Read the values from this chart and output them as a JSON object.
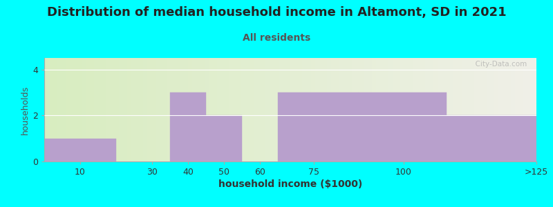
{
  "title": "Distribution of median household income in Altamont, SD in 2021",
  "subtitle": "All residents",
  "xlabel": "household income ($1000)",
  "ylabel": "households",
  "background_color": "#00FFFF",
  "plot_bg_left_color": "#d8edc0",
  "plot_bg_right_color": "#f0f0e8",
  "bar_color": "#b8a0cc",
  "bar_edgecolor": "#b8a0cc",
  "watermark": "  City-Data.com",
  "bar_lefts": [
    0,
    20,
    35,
    45,
    55,
    65,
    87.5,
    112
  ],
  "bar_widths": [
    20,
    15,
    10,
    10,
    10,
    22.5,
    24.5,
    25
  ],
  "bar_heights": [
    1,
    0,
    3,
    2,
    0,
    3,
    3,
    2
  ],
  "xlim": [
    0,
    137
  ],
  "xtick_positions": [
    10,
    30,
    40,
    50,
    60,
    75,
    100,
    137
  ],
  "xtick_labels": [
    "10",
    "30",
    "40",
    "50",
    "60",
    "75",
    "100",
    ">125"
  ],
  "ylim": [
    0,
    4.5
  ],
  "yticks": [
    0,
    2,
    4
  ],
  "title_fontsize": 13,
  "subtitle_fontsize": 10,
  "xlabel_fontsize": 10,
  "ylabel_fontsize": 9,
  "subtitle_color": "#555555"
}
